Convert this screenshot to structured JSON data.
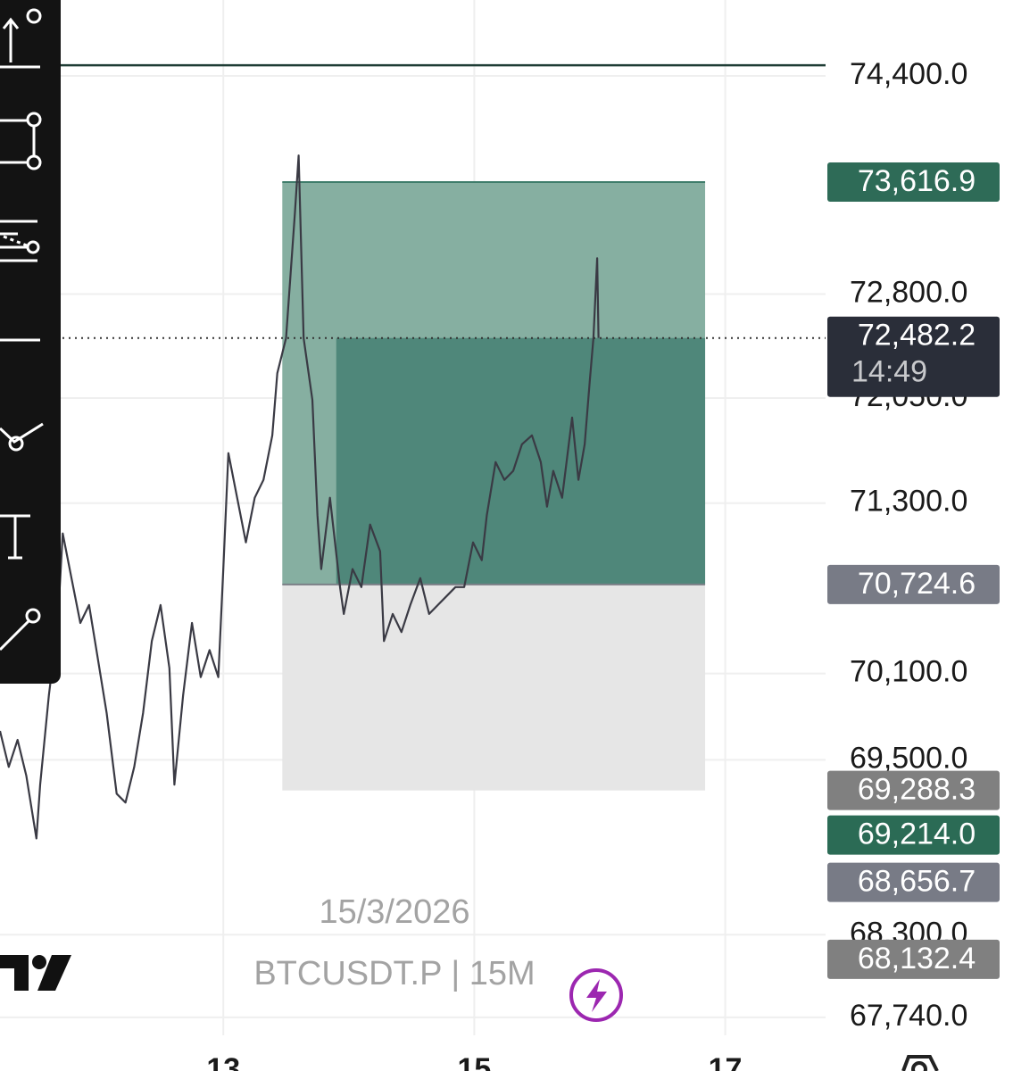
{
  "chart_data": {
    "type": "line",
    "watermark": "15/3/2026",
    "symbol": "BTCUSDT.P | 15M",
    "log_scale": true,
    "grid": true,
    "color": "#3a3a44",
    "x": [
      11.22,
      11.29,
      11.36,
      11.43,
      11.51,
      11.54,
      11.61,
      11.68,
      11.72,
      11.79,
      11.86,
      11.93,
      12.0,
      12.07,
      12.15,
      12.22,
      12.29,
      12.36,
      12.43,
      12.5,
      12.57,
      12.61,
      12.68,
      12.75,
      12.82,
      12.89,
      12.96,
      13.0,
      13.04,
      13.11,
      13.18,
      13.25,
      13.32,
      13.39,
      13.43,
      13.5,
      13.57,
      13.6,
      13.64,
      13.71,
      13.75,
      13.78,
      13.85,
      13.93,
      13.96,
      14.03,
      14.1,
      14.17,
      14.25,
      14.28,
      14.35,
      14.42,
      14.49,
      14.57,
      14.64,
      14.71,
      14.78,
      14.85,
      14.92,
      14.99,
      15.06,
      15.1,
      15.17,
      15.24,
      15.31,
      15.38,
      15.46,
      15.53,
      15.58,
      15.63,
      15.7,
      15.78,
      15.83,
      15.88,
      15.92,
      15.95,
      15.98,
      15.99
    ],
    "values": [
      69700,
      69451,
      69638,
      69389,
      68958,
      69328,
      69950,
      70454,
      71085,
      70769,
      70454,
      70580,
      70201,
      69825,
      69266,
      69205,
      69451,
      69825,
      70327,
      70580,
      70138,
      69328,
      69950,
      70454,
      70075,
      70264,
      70075,
      70833,
      71656,
      71338,
      71022,
      71338,
      71465,
      71783,
      72228,
      72482,
      73388,
      73812,
      72482,
      72037,
      71212,
      70833,
      71338,
      70706,
      70517,
      70833,
      70706,
      71148,
      70959,
      70327,
      70517,
      70390,
      70580,
      70769,
      70517,
      70580,
      70643,
      70706,
      70706,
      71022,
      70896,
      71212,
      71592,
      71465,
      71529,
      71719,
      71783,
      71592,
      71275,
      71529,
      71338,
      71910,
      71465,
      71719,
      72164,
      72482,
      73061,
      72482.2
    ],
    "xlim": [
      11.22,
      17.8
    ],
    "xticks": [
      13,
      15,
      17
    ],
    "ylim": [
      67619,
      74964
    ],
    "yticks": [
      {
        "value": 74400,
        "label": "74,400.0"
      },
      {
        "value": 72800,
        "label": "72,800.0"
      },
      {
        "value": 72050,
        "label": "72,050.0"
      },
      {
        "value": 71300,
        "label": "71,300.0"
      },
      {
        "value": 70100,
        "label": "70,100.0"
      },
      {
        "value": 69500,
        "label": "69,500.0"
      },
      {
        "value": 68300,
        "label": "68,300.0"
      },
      {
        "value": 67740,
        "label": "67,740.0"
      }
    ],
    "hline": {
      "value": 74478,
      "color": "#1f3d35"
    },
    "position": {
      "x": [
        13.47,
        16.84
      ],
      "progress_start": 13.9,
      "target": 73616.9,
      "entry": 70724.6,
      "stop": 69288.3,
      "profit_color": "#86afa1",
      "progress_color": "#4f877a",
      "stop_color": "#e6e6e6"
    },
    "price_tags": [
      {
        "value": 73616.9,
        "label": "73,616.9",
        "color": "#2e6b57"
      },
      {
        "value": 72482.2,
        "label": "72,482.2",
        "countdown": "14:49",
        "color": "#2a2e39"
      },
      {
        "value": 70724.6,
        "label": "70,724.6",
        "color": "#787b86"
      },
      {
        "value": 69288.3,
        "label": "69,288.3",
        "color": "#808080"
      },
      {
        "value": 69214.0,
        "label": "69,214.0",
        "color": "#2b6b55"
      },
      {
        "value": 68656.7,
        "label": "68,656.7",
        "color": "#787b86"
      },
      {
        "value": 68132.4,
        "label": "68,132.4",
        "color": "#808080"
      }
    ]
  }
}
